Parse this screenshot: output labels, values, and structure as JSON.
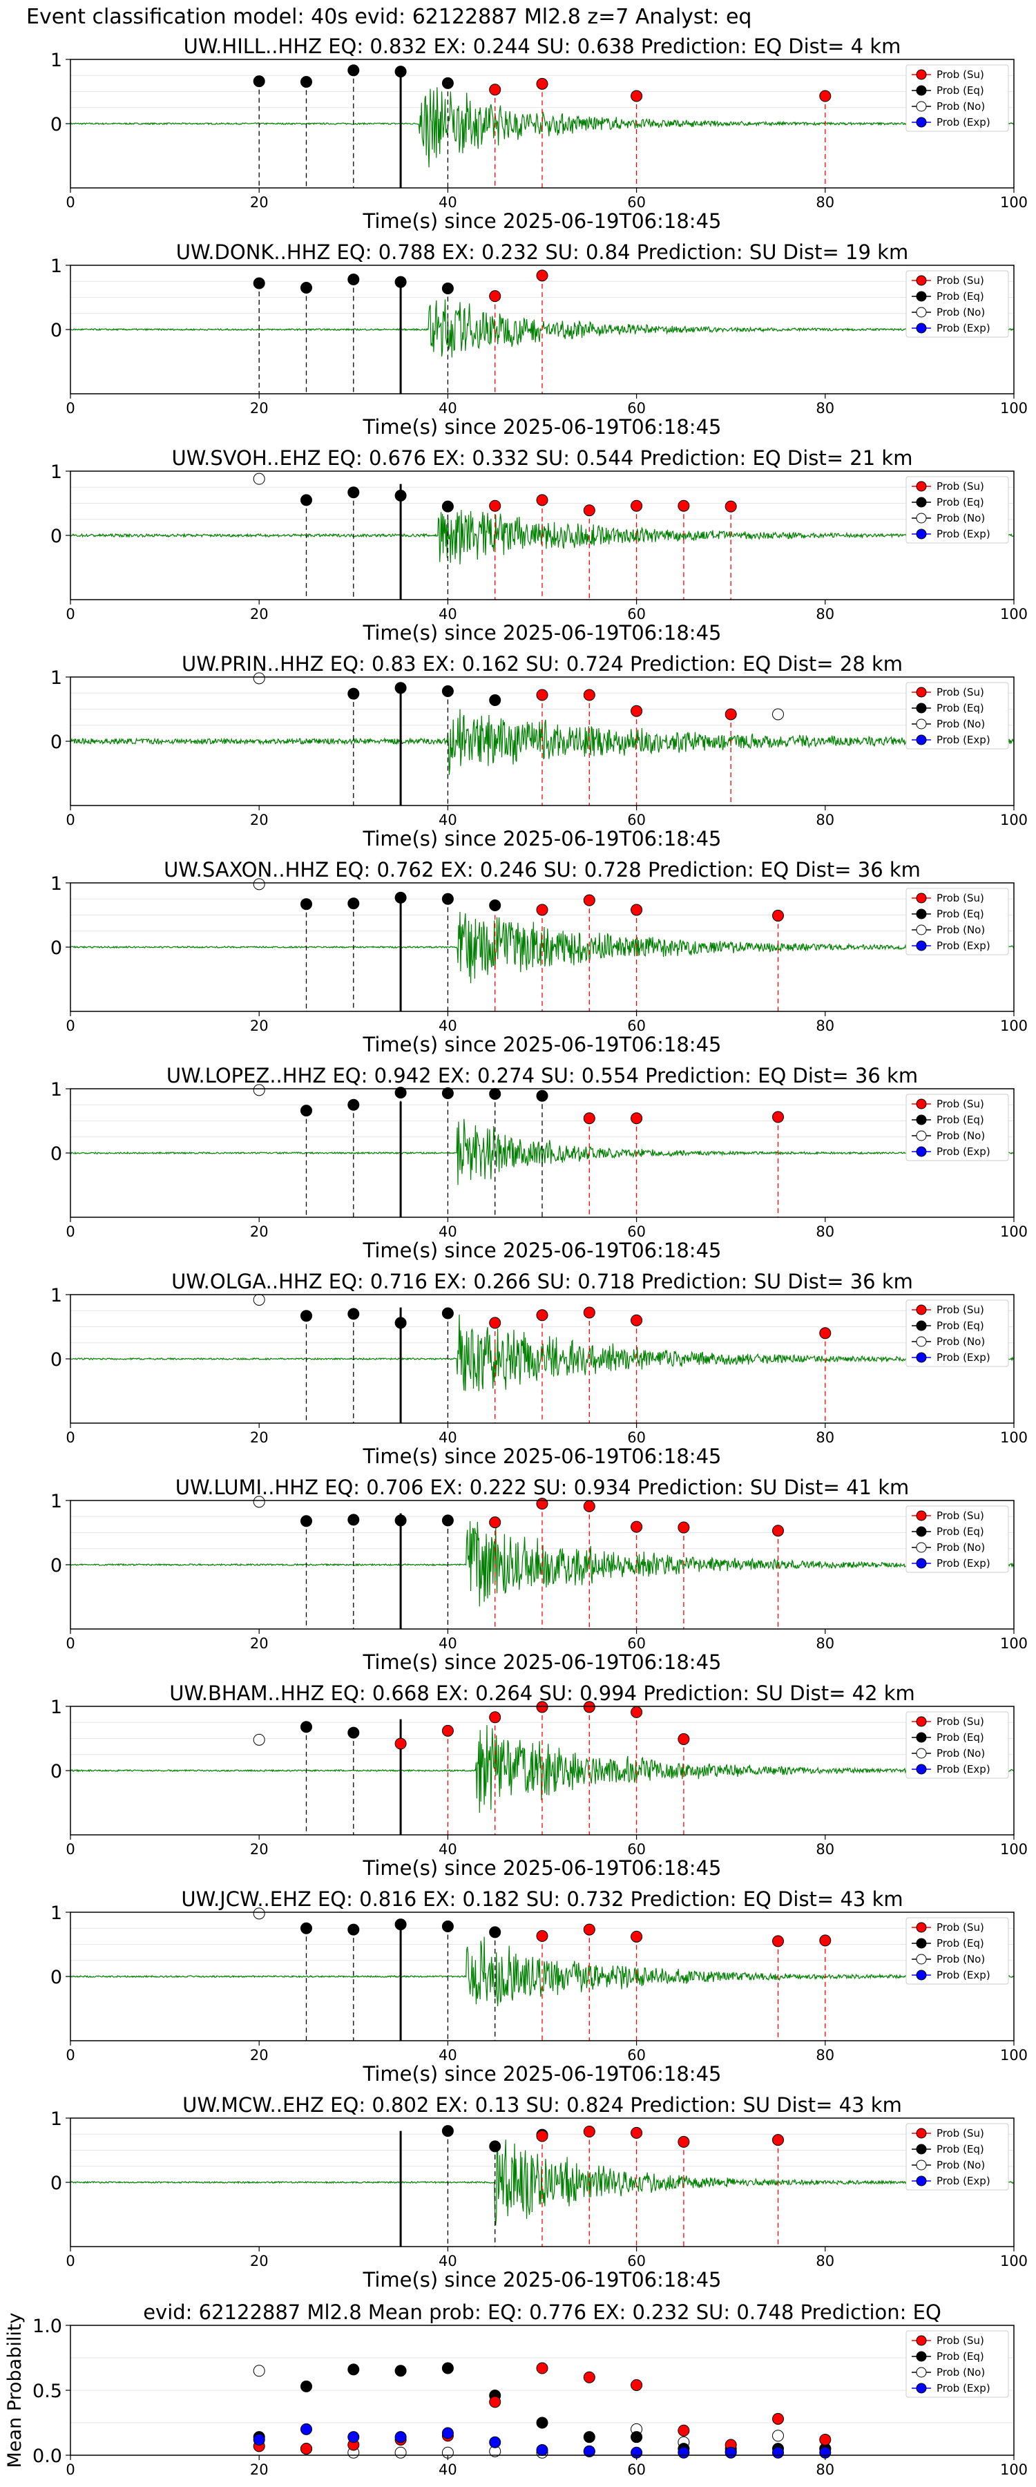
{
  "figure_title": "Event classification model: 40s evid: 62122887 Ml2.8 z=7 Analyst: eq",
  "colors": {
    "waveform": "#008000",
    "su": "#ff0000",
    "eq": "#000000",
    "no": "#ffffff",
    "exp": "#0000ff",
    "su_line": "#ff0000",
    "eq_line": "#000000"
  },
  "legend": {
    "position": "top-right",
    "entries": [
      "Prob (Su)",
      "Prob (Eq)",
      "Prob (No)",
      "Prob (Exp)"
    ]
  },
  "chart_data": [
    {
      "type": "scatter",
      "title": "UW.HILL..HHZ   EQ: 0.832  EX: 0.244  SU: 0.638   Prediction: EQ    Dist= 4 km",
      "xlabel": "Time(s) since 2025-06-19T06:18:45",
      "xlim": [
        0,
        100
      ],
      "ylim": [
        -1,
        1
      ],
      "xticks": [
        0,
        20,
        40,
        60,
        80,
        100
      ],
      "yticks": [
        0,
        1
      ],
      "arrival": 35,
      "waveform": {
        "onset": 37,
        "peak": 0.8,
        "decay": 10,
        "offset": 0
      },
      "eq_lines": [
        20,
        25,
        30,
        35,
        40
      ],
      "su_lines": [
        45,
        50,
        60,
        80
      ],
      "points": {
        "no": [],
        "eq": [
          [
            20,
            0.66
          ],
          [
            25,
            0.65
          ],
          [
            30,
            0.83
          ],
          [
            35,
            0.81
          ],
          [
            40,
            0.63
          ]
        ],
        "su": [
          [
            45,
            0.53
          ],
          [
            50,
            0.62
          ],
          [
            60,
            0.43
          ],
          [
            80,
            0.43
          ]
        ],
        "exp": []
      }
    },
    {
      "type": "scatter",
      "title": "UW.DONK..HHZ   EQ: 0.788  EX: 0.232  SU: 0.84   Prediction: SU    Dist= 19 km",
      "xlabel": "Time(s) since 2025-06-19T06:18:45",
      "xlim": [
        0,
        100
      ],
      "ylim": [
        -1,
        1
      ],
      "xticks": [
        0,
        20,
        40,
        60,
        80,
        100
      ],
      "yticks": [
        0,
        1
      ],
      "arrival": 35,
      "waveform": {
        "onset": 38,
        "peak": 0.65,
        "decay": 10,
        "offset": 0
      },
      "eq_lines": [
        20,
        25,
        30,
        35,
        40
      ],
      "su_lines": [
        45,
        50
      ],
      "points": {
        "no": [],
        "eq": [
          [
            20,
            0.72
          ],
          [
            25,
            0.65
          ],
          [
            30,
            0.78
          ],
          [
            35,
            0.74
          ],
          [
            40,
            0.64
          ]
        ],
        "su": [
          [
            45,
            0.52
          ],
          [
            50,
            0.84
          ]
        ],
        "exp": []
      }
    },
    {
      "type": "scatter",
      "title": "UW.SVOH..EHZ   EQ: 0.676  EX: 0.332  SU: 0.544   Prediction: EQ    Dist= 21 km",
      "xlabel": "Time(s) since 2025-06-19T06:18:45",
      "xlim": [
        0,
        100
      ],
      "ylim": [
        -1,
        1
      ],
      "xticks": [
        0,
        20,
        40,
        60,
        80,
        100
      ],
      "yticks": [
        0,
        1
      ],
      "arrival": 35,
      "waveform": {
        "onset": 39,
        "peak": 0.6,
        "decay": 14,
        "offset": 0.01
      },
      "eq_lines": [
        25,
        30,
        35,
        40
      ],
      "su_lines": [
        45,
        50,
        55,
        60,
        65,
        70
      ],
      "points": {
        "no": [
          [
            20,
            0.88
          ]
        ],
        "eq": [
          [
            25,
            0.55
          ],
          [
            30,
            0.67
          ],
          [
            35,
            0.62
          ],
          [
            40,
            0.45
          ]
        ],
        "su": [
          [
            45,
            0.46
          ],
          [
            50,
            0.55
          ],
          [
            55,
            0.39
          ],
          [
            60,
            0.46
          ],
          [
            65,
            0.46
          ],
          [
            70,
            0.45
          ]
        ],
        "exp": []
      }
    },
    {
      "type": "scatter",
      "title": "UW.PRIN..HHZ   EQ: 0.83  EX: 0.162  SU: 0.724   Prediction: EQ    Dist= 28 km",
      "xlabel": "Time(s) since 2025-06-19T06:18:45",
      "xlim": [
        0,
        100
      ],
      "ylim": [
        -1,
        1
      ],
      "xticks": [
        0,
        20,
        40,
        60,
        80,
        100
      ],
      "yticks": [
        0,
        1
      ],
      "arrival": 35,
      "waveform": {
        "onset": 40,
        "peak": 0.55,
        "decay": 22,
        "offset": 0.03
      },
      "eq_lines": [
        30,
        35,
        40
      ],
      "su_lines": [
        50,
        55,
        60,
        70
      ],
      "points": {
        "no": [
          [
            20,
            0.98
          ],
          [
            75,
            0.42
          ]
        ],
        "eq": [
          [
            30,
            0.74
          ],
          [
            35,
            0.83
          ],
          [
            40,
            0.78
          ],
          [
            45,
            0.64
          ]
        ],
        "su": [
          [
            50,
            0.72
          ],
          [
            55,
            0.72
          ],
          [
            60,
            0.47
          ],
          [
            70,
            0.42
          ]
        ],
        "exp": []
      }
    },
    {
      "type": "scatter",
      "title": "UW.SAXON..HHZ   EQ: 0.762  EX: 0.246  SU: 0.728   Prediction: EQ    Dist= 36 km",
      "xlabel": "Time(s) since 2025-06-19T06:18:45",
      "xlim": [
        0,
        100
      ],
      "ylim": [
        -1,
        1
      ],
      "xticks": [
        0,
        20,
        40,
        60,
        80,
        100
      ],
      "yticks": [
        0,
        1
      ],
      "arrival": 35,
      "waveform": {
        "onset": 41,
        "peak": 0.75,
        "decay": 14,
        "offset": 0
      },
      "eq_lines": [
        25,
        30,
        35,
        40
      ],
      "su_lines": [
        45,
        50,
        55,
        60,
        75
      ],
      "points": {
        "no": [
          [
            20,
            0.98
          ]
        ],
        "eq": [
          [
            25,
            0.67
          ],
          [
            30,
            0.68
          ],
          [
            35,
            0.77
          ],
          [
            40,
            0.75
          ],
          [
            45,
            0.65
          ]
        ],
        "su": [
          [
            50,
            0.58
          ],
          [
            55,
            0.73
          ],
          [
            60,
            0.58
          ],
          [
            75,
            0.49
          ]
        ],
        "exp": []
      }
    },
    {
      "type": "scatter",
      "title": "UW.LOPEZ..HHZ   EQ: 0.942  EX: 0.274  SU: 0.554   Prediction: EQ    Dist= 36 km",
      "xlabel": "Time(s) since 2025-06-19T06:18:45",
      "xlim": [
        0,
        100
      ],
      "ylim": [
        -1,
        1
      ],
      "xticks": [
        0,
        20,
        40,
        60,
        80,
        100
      ],
      "yticks": [
        0,
        1
      ],
      "arrival": 35,
      "waveform": {
        "onset": 41,
        "peak": 0.7,
        "decay": 8,
        "offset": 0
      },
      "eq_lines": [
        25,
        30,
        35,
        40,
        45,
        50
      ],
      "su_lines": [
        55,
        60,
        75
      ],
      "points": {
        "no": [
          [
            20,
            0.98
          ]
        ],
        "eq": [
          [
            25,
            0.66
          ],
          [
            30,
            0.75
          ],
          [
            35,
            0.94
          ],
          [
            40,
            0.93
          ],
          [
            45,
            0.92
          ],
          [
            50,
            0.89
          ]
        ],
        "su": [
          [
            55,
            0.54
          ],
          [
            60,
            0.54
          ],
          [
            75,
            0.56
          ]
        ],
        "exp": []
      }
    },
    {
      "type": "scatter",
      "title": "UW.OLGA..HHZ   EQ: 0.716  EX: 0.266  SU: 0.718   Prediction: SU    Dist= 36 km",
      "xlabel": "Time(s) since 2025-06-19T06:18:45",
      "xlim": [
        0,
        100
      ],
      "ylim": [
        -1,
        1
      ],
      "xticks": [
        0,
        20,
        40,
        60,
        80,
        100
      ],
      "yticks": [
        0,
        1
      ],
      "arrival": 35,
      "waveform": {
        "onset": 41,
        "peak": 0.75,
        "decay": 14,
        "offset": 0
      },
      "eq_lines": [
        25,
        30,
        35,
        40
      ],
      "su_lines": [
        45,
        50,
        55,
        60,
        80
      ],
      "points": {
        "no": [
          [
            20,
            0.92
          ]
        ],
        "eq": [
          [
            25,
            0.67
          ],
          [
            30,
            0.7
          ],
          [
            35,
            0.56
          ],
          [
            40,
            0.71
          ]
        ],
        "su": [
          [
            45,
            0.56
          ],
          [
            50,
            0.68
          ],
          [
            55,
            0.72
          ],
          [
            60,
            0.6
          ],
          [
            80,
            0.4
          ]
        ],
        "exp": []
      }
    },
    {
      "type": "scatter",
      "title": "UW.LUMI..HHZ   EQ: 0.706  EX: 0.222  SU: 0.934   Prediction: SU    Dist= 41 km",
      "xlabel": "Time(s) since 2025-06-19T06:18:45",
      "xlim": [
        0,
        100
      ],
      "ylim": [
        -1,
        1
      ],
      "xticks": [
        0,
        20,
        40,
        60,
        80,
        100
      ],
      "yticks": [
        0,
        1
      ],
      "arrival": 35,
      "waveform": {
        "onset": 42,
        "peak": 0.8,
        "decay": 14,
        "offset": 0
      },
      "eq_lines": [
        25,
        30,
        35,
        40
      ],
      "su_lines": [
        45,
        50,
        55,
        60,
        65,
        75
      ],
      "points": {
        "no": [
          [
            20,
            0.98
          ]
        ],
        "eq": [
          [
            25,
            0.68
          ],
          [
            30,
            0.7
          ],
          [
            35,
            0.69
          ],
          [
            40,
            0.69
          ]
        ],
        "su": [
          [
            45,
            0.66
          ],
          [
            50,
            0.95
          ],
          [
            55,
            0.91
          ],
          [
            60,
            0.59
          ],
          [
            65,
            0.58
          ],
          [
            75,
            0.53
          ]
        ],
        "exp": []
      }
    },
    {
      "type": "scatter",
      "title": "UW.BHAM..HHZ   EQ: 0.668  EX: 0.264  SU: 0.994   Prediction: SU    Dist= 42 km",
      "xlabel": "Time(s) since 2025-06-19T06:18:45",
      "xlim": [
        0,
        100
      ],
      "ylim": [
        -1,
        1
      ],
      "xticks": [
        0,
        20,
        40,
        60,
        80,
        100
      ],
      "yticks": [
        0,
        1
      ],
      "arrival": 35,
      "waveform": {
        "onset": 43,
        "peak": 0.9,
        "decay": 12,
        "offset": 0
      },
      "eq_lines": [
        25,
        30
      ],
      "su_lines": [
        35,
        40,
        45,
        50,
        55,
        60,
        65
      ],
      "points": {
        "no": [
          [
            20,
            0.48
          ]
        ],
        "eq": [
          [
            25,
            0.68
          ],
          [
            30,
            0.59
          ]
        ],
        "su": [
          [
            35,
            0.42
          ],
          [
            40,
            0.62
          ],
          [
            45,
            0.83
          ],
          [
            50,
            0.99
          ],
          [
            55,
            0.99
          ],
          [
            60,
            0.91
          ],
          [
            65,
            0.49
          ]
        ],
        "exp": []
      }
    },
    {
      "type": "scatter",
      "title": "UW.JCW..EHZ   EQ: 0.816  EX: 0.182  SU: 0.732   Prediction: EQ    Dist= 43 km",
      "xlabel": "Time(s) since 2025-06-19T06:18:45",
      "xlim": [
        0,
        100
      ],
      "ylim": [
        -1,
        1
      ],
      "xticks": [
        0,
        20,
        40,
        60,
        80,
        100
      ],
      "yticks": [
        0,
        1
      ],
      "arrival": 35,
      "waveform": {
        "onset": 42,
        "peak": 0.75,
        "decay": 12,
        "offset": 0
      },
      "eq_lines": [
        25,
        30,
        35,
        40,
        45
      ],
      "su_lines": [
        50,
        55,
        60,
        75,
        80
      ],
      "points": {
        "no": [
          [
            20,
            0.98
          ]
        ],
        "eq": [
          [
            25,
            0.75
          ],
          [
            30,
            0.73
          ],
          [
            35,
            0.81
          ],
          [
            40,
            0.78
          ],
          [
            45,
            0.69
          ]
        ],
        "su": [
          [
            50,
            0.63
          ],
          [
            55,
            0.73
          ],
          [
            60,
            0.62
          ],
          [
            75,
            0.55
          ],
          [
            80,
            0.56
          ]
        ],
        "exp": []
      }
    },
    {
      "type": "scatter",
      "title": "UW.MCW..EHZ   EQ: 0.802  EX: 0.13  SU: 0.824   Prediction: SU    Dist= 43 km",
      "xlabel": "Time(s) since 2025-06-19T06:18:45",
      "xlim": [
        0,
        100
      ],
      "ylim": [
        -1,
        1
      ],
      "xticks": [
        0,
        20,
        40,
        60,
        80,
        100
      ],
      "yticks": [
        0,
        1
      ],
      "arrival": 35,
      "waveform": {
        "onset": 45,
        "peak": 0.85,
        "decay": 10,
        "offset": 0
      },
      "eq_lines": [
        40,
        45
      ],
      "su_lines": [
        50,
        55,
        60,
        65,
        75
      ],
      "points": {
        "no": [],
        "eq": [
          [
            40,
            0.8
          ],
          [
            45,
            0.56
          ],
          [
            50,
            0.74
          ]
        ],
        "su": [
          [
            50,
            0.72
          ],
          [
            55,
            0.79
          ],
          [
            60,
            0.77
          ],
          [
            65,
            0.63
          ],
          [
            75,
            0.66
          ]
        ],
        "exp": []
      }
    },
    {
      "type": "scatter",
      "title": "evid: 62122887  Ml2.8   Mean prob:   EQ: 0.776  EX: 0.232  SU: 0.748   Prediction: EQ",
      "ylabel": "Mean Probability",
      "xlim": [
        0,
        100
      ],
      "ylim": [
        0,
        1
      ],
      "xticks": [
        0,
        20,
        40,
        60,
        80,
        100
      ],
      "yticks": [
        0.0,
        0.5,
        1.0
      ],
      "ytick_labels": [
        "0.0",
        "0.5",
        "1.0"
      ],
      "points": {
        "no": [
          [
            20,
            0.65
          ],
          [
            25,
            0.05
          ],
          [
            30,
            0.02
          ],
          [
            35,
            0.02
          ],
          [
            40,
            0.02
          ],
          [
            45,
            0.03
          ],
          [
            50,
            0.02
          ],
          [
            55,
            0.03
          ],
          [
            60,
            0.2
          ],
          [
            65,
            0.1
          ],
          [
            70,
            0.05
          ],
          [
            75,
            0.15
          ],
          [
            80,
            0.05
          ]
        ],
        "eq": [
          [
            20,
            0.14
          ],
          [
            25,
            0.53
          ],
          [
            30,
            0.66
          ],
          [
            35,
            0.65
          ],
          [
            40,
            0.67
          ],
          [
            45,
            0.46
          ],
          [
            50,
            0.25
          ],
          [
            55,
            0.14
          ],
          [
            60,
            0.14
          ],
          [
            65,
            0.05
          ],
          [
            70,
            0.03
          ],
          [
            75,
            0.05
          ],
          [
            80,
            0.05
          ]
        ],
        "su": [
          [
            20,
            0.07
          ],
          [
            25,
            0.05
          ],
          [
            30,
            0.08
          ],
          [
            35,
            0.12
          ],
          [
            40,
            0.15
          ],
          [
            45,
            0.41
          ],
          [
            50,
            0.67
          ],
          [
            55,
            0.6
          ],
          [
            60,
            0.54
          ],
          [
            65,
            0.19
          ],
          [
            70,
            0.08
          ],
          [
            75,
            0.28
          ],
          [
            80,
            0.12
          ]
        ],
        "exp": [
          [
            20,
            0.12
          ],
          [
            25,
            0.2
          ],
          [
            30,
            0.14
          ],
          [
            35,
            0.14
          ],
          [
            40,
            0.17
          ],
          [
            45,
            0.1
          ],
          [
            50,
            0.04
          ],
          [
            55,
            0.03
          ],
          [
            60,
            0.02
          ],
          [
            65,
            0.02
          ],
          [
            70,
            0.02
          ],
          [
            75,
            0.02
          ],
          [
            80,
            0.02
          ]
        ]
      }
    }
  ]
}
